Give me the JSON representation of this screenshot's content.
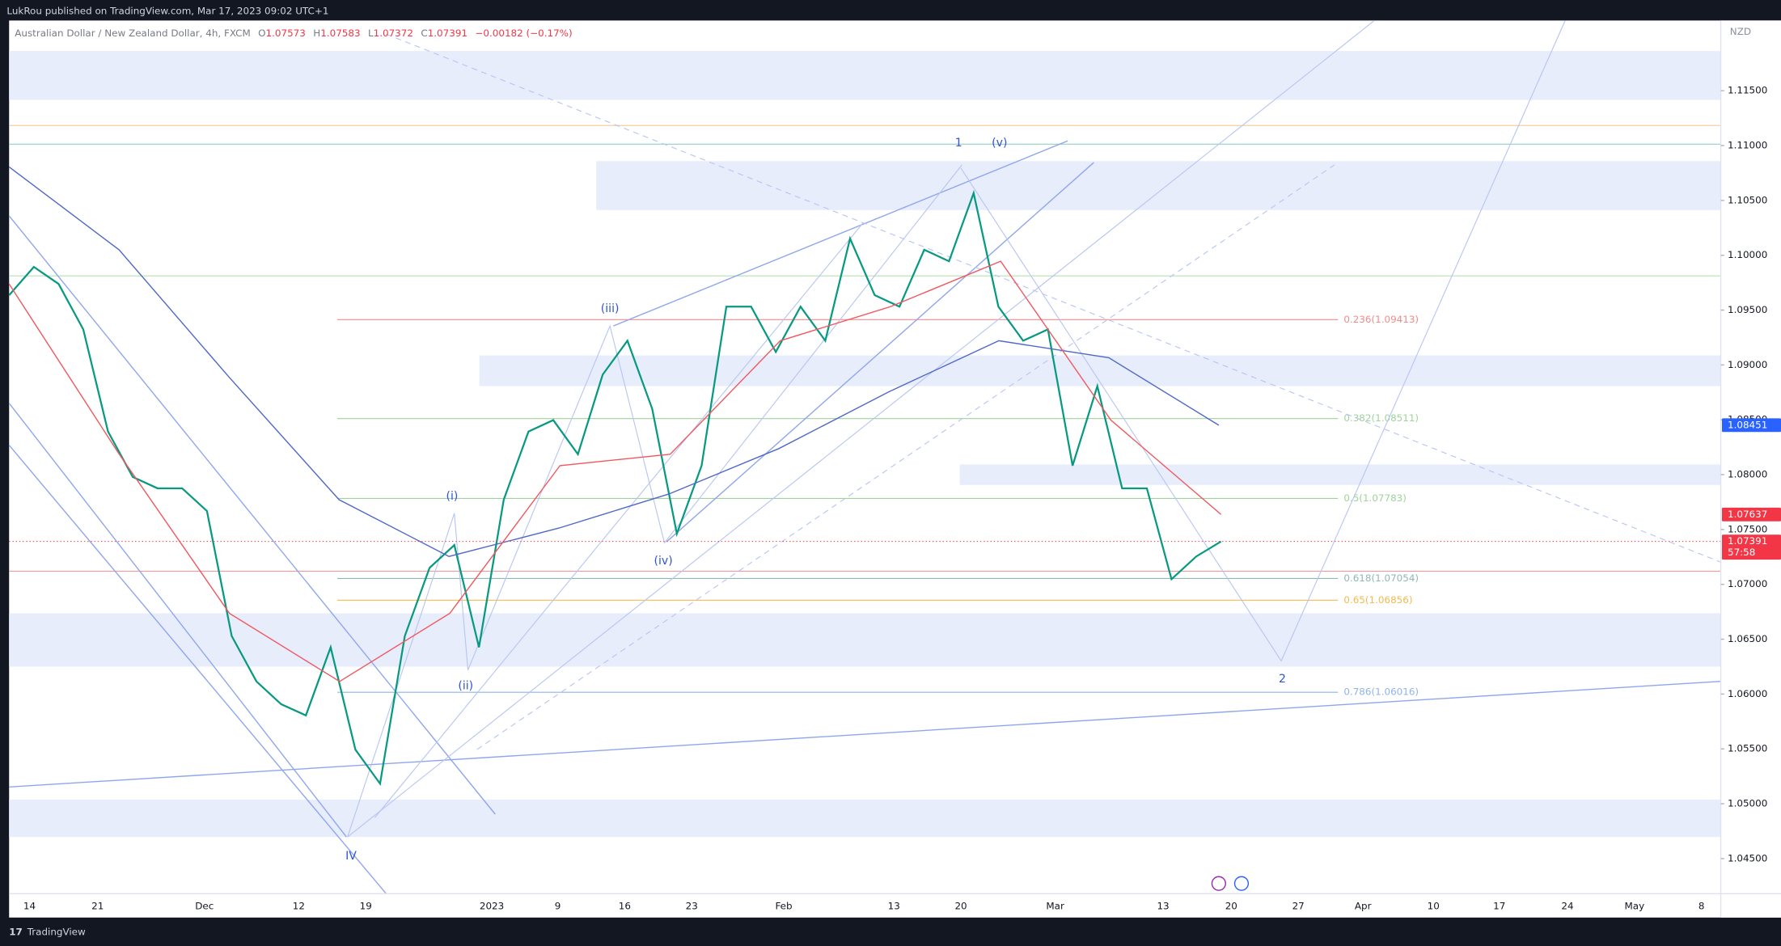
{
  "header": {
    "publisher": "LukRou published on TradingView.com, Mar 17, 2023 09:02 UTC+1",
    "footer": "TradingView"
  },
  "chart_data": {
    "type": "line",
    "title": "Australian Dollar / New Zealand Dollar, 4h, FXCM",
    "ohlc": [
      {
        "name": "O",
        "value": 1.07573
      },
      {
        "name": "H",
        "value": 1.07583
      },
      {
        "name": "L",
        "value": 1.07372
      },
      {
        "name": "C",
        "value": 1.07391
      }
    ],
    "change": {
      "value": -0.00182,
      "label": "−0.00182 (−0.17%)"
    },
    "currency": "NZD",
    "x_labels": [
      "14",
      "21",
      "Dec",
      "12",
      "19",
      "2023",
      "9",
      "16",
      "23",
      "Feb",
      "13",
      "20",
      "Mar",
      "13",
      "20",
      "27",
      "Apr",
      "10",
      "17",
      "24",
      "May",
      "8"
    ],
    "series": [
      {
        "color": "#089981",
        "values": [
          1.09636,
          1.09894,
          1.09739,
          1.09325,
          1.08393,
          1.07979,
          1.07875,
          1.07875,
          1.07668,
          1.06529,
          1.06115,
          1.05908,
          1.05805,
          1.06426,
          1.05494,
          1.05183,
          1.06529,
          1.07151,
          1.07358,
          1.06426,
          1.07772,
          1.08393,
          1.08497,
          1.08186,
          1.08911,
          1.09221,
          1.086,
          1.07461,
          1.08082,
          1.09532,
          1.09532,
          1.09118,
          1.09532,
          1.09221,
          1.10153,
          1.09636,
          1.09532,
          1.1005,
          1.09946,
          1.10567,
          1.09532,
          1.09221,
          1.09325,
          1.08082,
          1.08807,
          1.07875,
          1.07875,
          1.07047,
          1.07254,
          1.07391
        ]
      },
      {
        "color": "#5068c8",
        "values": [
          1.10806,
          1.1005,
          1.0889,
          1.07772,
          1.07254,
          1.07513,
          1.07824,
          1.08238,
          1.08755,
          1.09221,
          1.09066,
          1.08451
        ]
      },
      {
        "color": "#f0585f",
        "values": [
          1.09739,
          1.08186,
          1.06736,
          1.06115,
          1.06736,
          1.08082,
          1.08186,
          1.09221,
          1.09532,
          1.09946,
          1.08497,
          1.07637
        ]
      }
    ],
    "ylim": [
      1.0418,
      1.1214
    ],
    "yticks": [
      {
        "value": 1.045,
        "label": "1.04500"
      },
      {
        "value": 1.05,
        "label": "1.05000"
      },
      {
        "value": 1.055,
        "label": "1.05500"
      },
      {
        "value": 1.06,
        "label": "1.06000"
      },
      {
        "value": 1.065,
        "label": "1.06500"
      },
      {
        "value": 1.07,
        "label": "1.07000"
      },
      {
        "value": 1.075,
        "label": "1.07500"
      },
      {
        "value": 1.08,
        "label": "1.08000"
      },
      {
        "value": 1.085,
        "label": "1.08500"
      },
      {
        "value": 1.09,
        "label": "1.09000"
      },
      {
        "value": 1.095,
        "label": "1.09500"
      },
      {
        "value": 1.1,
        "label": "1.10000"
      },
      {
        "value": 1.105,
        "label": "1.10500"
      },
      {
        "value": 1.11,
        "label": "1.11000"
      },
      {
        "value": 1.115,
        "label": "1.11500"
      }
    ],
    "zones": [
      [
        1.11417,
        1.11862
      ],
      [
        1.10412,
        1.10858
      ],
      [
        1.08807,
        1.09087
      ],
      [
        1.07906,
        1.08093
      ],
      [
        1.0625,
        1.06736
      ],
      [
        1.04697,
        1.05038
      ]
    ],
    "levels": [
      {
        "value": 1.11183,
        "color": "#f5c795"
      },
      {
        "value": 1.11013,
        "color": "#8fcfc8"
      },
      {
        "value": 1.09812,
        "color": "#b9dfb0"
      },
      {
        "value": 1.0712,
        "color": "#f29a9a"
      }
    ],
    "fib_levels": [
      {
        "value": 1.09413,
        "label": "0.236(1.09413)",
        "color": "#f28b8b"
      },
      {
        "value": 1.08511,
        "label": "0.382(1.08511)",
        "color": "#9fd39a"
      },
      {
        "value": 1.07783,
        "label": "0.5(1.07783)",
        "color": "#9fd39a"
      },
      {
        "value": 1.07054,
        "label": "0.618(1.07054)",
        "color": "#8fb8b4"
      },
      {
        "value": 1.06856,
        "label": "0.65(1.06856)",
        "color": "#f5b94f"
      },
      {
        "value": 1.06016,
        "label": "0.786(1.06016)",
        "color": "#8fb4e8"
      }
    ],
    "price_labels": [
      {
        "value": 1.08451,
        "color": "#2962ff"
      },
      {
        "value": 1.07637,
        "color": "#f23645"
      },
      {
        "value": 1.07391,
        "color": "#f23645",
        "countdown": "57:58"
      }
    ],
    "wave_labels": [
      "IV",
      "(i)",
      "(ii)",
      "(iii)",
      "(iv)",
      "1",
      "(v)",
      "2"
    ]
  }
}
